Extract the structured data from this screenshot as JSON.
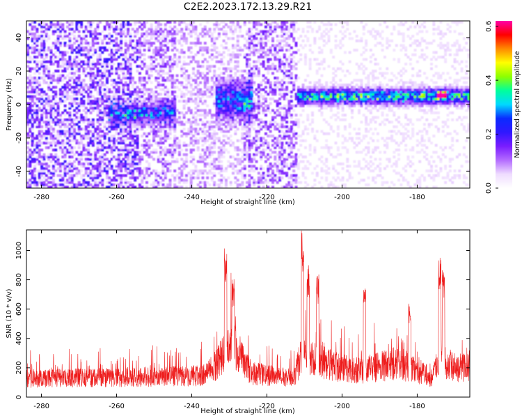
{
  "title": "C2E2.2023.172.13.29.R21",
  "colors": {
    "snr_line": "#ee1c1c",
    "colormap": [
      "#ffffff",
      "#efdcff",
      "#b46cff",
      "#7a1dff",
      "#3018ff",
      "#0a2bff",
      "#00d9ff",
      "#00ff9c",
      "#8dff00",
      "#ffff00",
      "#ff8a00",
      "#ff0000",
      "#ff00a8"
    ]
  },
  "chart_data": [
    {
      "type": "heatmap",
      "title": "",
      "xlabel": "Height of straight line (km)",
      "ylabel": "Frequency (Hz)",
      "xlim": [
        -284,
        -166
      ],
      "ylim": [
        -50,
        50
      ],
      "x_ticks": [
        -280,
        -260,
        -240,
        -220,
        -200,
        -180
      ],
      "y_ticks": [
        -40,
        -20,
        0,
        20,
        40
      ],
      "grid": false,
      "colorbar": {
        "label": "Normalized spectral amplitude",
        "range": [
          0.0,
          0.62
        ],
        "ticks": [
          0.0,
          0.2,
          0.4,
          0.6
        ]
      },
      "bands": [
        {
          "x_range": [
            -284,
            -254
          ],
          "level": 0.11
        },
        {
          "x_range": [
            -254,
            -244
          ],
          "level": 0.08
        },
        {
          "x_range": [
            -244,
            -232
          ],
          "level": 0.06
        },
        {
          "x_range": [
            -232,
            -226
          ],
          "level": 0.05
        },
        {
          "x_range": [
            -226,
            -212
          ],
          "level": 0.09
        },
        {
          "x_range": [
            -212,
            -166
          ],
          "level": 0.03
        }
      ],
      "features": [
        {
          "description_x": [
            -262,
            -244
          ],
          "freq_center": -5,
          "freq_halfwidth": 6,
          "amplitude": 0.2
        },
        {
          "description_x": [
            -234,
            -224
          ],
          "freq_center": 3,
          "freq_halfwidth": 10,
          "amplitude": 0.25
        },
        {
          "description_x": [
            -212,
            -166
          ],
          "freq_center": 5,
          "freq_halfwidth": 4,
          "amplitude": 0.38
        },
        {
          "description_x": [
            -175,
            -172
          ],
          "freq_center": 6,
          "freq_halfwidth": 2,
          "amplitude": 0.6
        }
      ]
    },
    {
      "type": "line",
      "title": "",
      "xlabel": "Height of straight line (km)",
      "ylabel": "SNR (10 * v/v)",
      "xlim": [
        -284,
        -166
      ],
      "ylim": [
        0,
        1140
      ],
      "x_ticks": [
        -280,
        -260,
        -240,
        -220,
        -200,
        -180
      ],
      "y_ticks": [
        0,
        200,
        400,
        600,
        800,
        1000
      ],
      "grid": false,
      "baseline": [
        {
          "x": -284,
          "y": 140
        },
        {
          "x": -260,
          "y": 150
        },
        {
          "x": -240,
          "y": 160
        },
        {
          "x": -236,
          "y": 170
        },
        {
          "x": -232,
          "y": 300
        },
        {
          "x": -229,
          "y": 420
        },
        {
          "x": -227,
          "y": 300
        },
        {
          "x": -224,
          "y": 180
        },
        {
          "x": -213,
          "y": 140
        },
        {
          "x": -211,
          "y": 300
        },
        {
          "x": -205,
          "y": 260
        },
        {
          "x": -200,
          "y": 220
        },
        {
          "x": -195,
          "y": 200
        },
        {
          "x": -190,
          "y": 230
        },
        {
          "x": -185,
          "y": 260
        },
        {
          "x": -180,
          "y": 200
        },
        {
          "x": -176,
          "y": 150
        },
        {
          "x": -174,
          "y": 300
        },
        {
          "x": -170,
          "y": 220
        },
        {
          "x": -166,
          "y": 240
        }
      ],
      "peaks": [
        {
          "x": -231,
          "y": 1015
        },
        {
          "x": -229,
          "y": 810
        },
        {
          "x": -210.5,
          "y": 1140
        },
        {
          "x": -209,
          "y": 900
        },
        {
          "x": -206.5,
          "y": 840
        },
        {
          "x": -194,
          "y": 750
        },
        {
          "x": -182,
          "y": 650
        },
        {
          "x": -174,
          "y": 950
        },
        {
          "x": -173,
          "y": 900
        }
      ]
    }
  ]
}
